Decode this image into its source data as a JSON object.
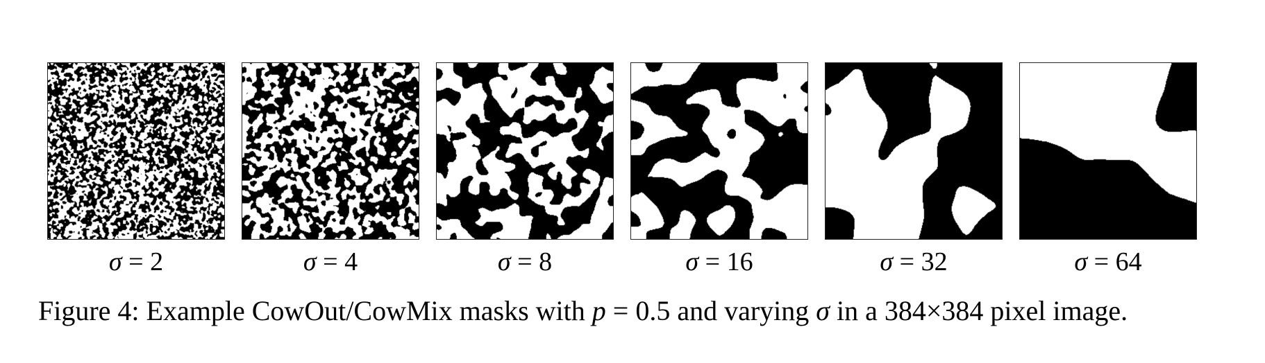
{
  "figure": {
    "panels": [
      {
        "symbol": "σ",
        "equals": "=",
        "value": "2",
        "sigma": 2
      },
      {
        "symbol": "σ",
        "equals": "=",
        "value": "4",
        "sigma": 4
      },
      {
        "symbol": "σ",
        "equals": "=",
        "value": "8",
        "sigma": 8
      },
      {
        "symbol": "σ",
        "equals": "=",
        "value": "16",
        "sigma": 16
      },
      {
        "symbol": "σ",
        "equals": "=",
        "value": "32",
        "sigma": 32
      },
      {
        "symbol": "σ",
        "equals": "=",
        "value": "64",
        "sigma": 64
      }
    ],
    "caption": {
      "part1": "Figure 4: Example CowOut/CowMix masks with ",
      "p": "p",
      "part2": " = 0.5 and varying ",
      "sigma": "σ",
      "part3": " in a 384×384 pixel image."
    },
    "mask_colors": {
      "on": "#000000",
      "off": "#ffffff"
    },
    "mask_proportion": 0.5
  }
}
